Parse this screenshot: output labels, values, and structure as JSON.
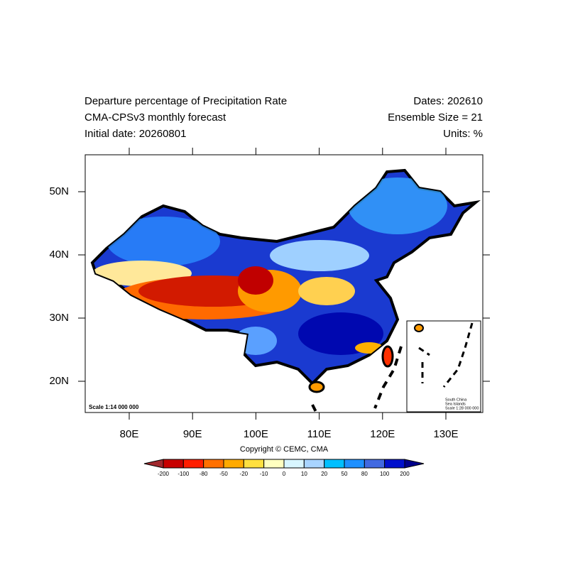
{
  "header": {
    "left": [
      "Departure percentage of Precipitation Rate",
      "CMA-CPSv3 monthly forecast",
      "Initial date: 20260801"
    ],
    "right": [
      "Dates: 202610",
      "Ensemble Size = 21",
      "Units: %"
    ]
  },
  "map": {
    "lat_labels": [
      "50N",
      "40N",
      "30N",
      "20N"
    ],
    "lon_labels": [
      "80E",
      "90E",
      "100E",
      "110E",
      "120E",
      "130E"
    ],
    "scale": "Scale 1:14 000 000",
    "inset": [
      "South China",
      "Sea Islands",
      "Scale 1:28 000 000"
    ]
  },
  "copyright": "Copyright © CEMC, CMA",
  "colorbar": {
    "labels": [
      "-200",
      "-100",
      "-80",
      "-50",
      "-20",
      "-10",
      "0",
      "10",
      "20",
      "50",
      "80",
      "100",
      "200"
    ],
    "colors": [
      "#a0282d",
      "#c80000",
      "#ff1e00",
      "#ff7000",
      "#ffaa00",
      "#ffe040",
      "#ffffc0",
      "#d8f6ff",
      "#a8d4ff",
      "#00bfff",
      "#1e90ff",
      "#4169e1",
      "#0010cc",
      "#00008b"
    ]
  }
}
